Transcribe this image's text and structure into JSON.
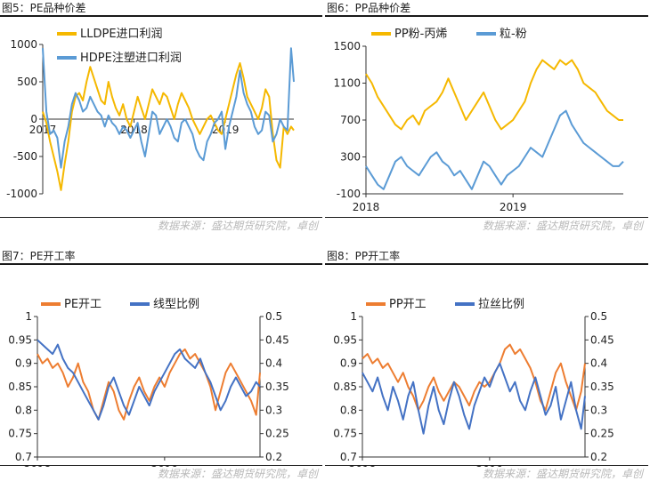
{
  "source_text": "数据来源：盛达期货研究院，卓创",
  "colors": {
    "orange": "#ed7d31",
    "gold": "#f5b800",
    "blue": "#5b9bd5",
    "navy": "#4472c4"
  },
  "chart_data": [
    {
      "id": "fig5",
      "type": "line",
      "title": "图5：PE品种价差",
      "ylim": [
        -1000,
        1000
      ],
      "yticks": [
        "1000",
        "500",
        "0",
        "-500",
        "-1000"
      ],
      "xlabels": [
        "2017",
        "2018",
        "2019"
      ],
      "xlabel_pos": [
        2017,
        2018,
        2019
      ],
      "xlim": [
        2017.0,
        2019.75
      ],
      "legend": "top-left",
      "series": [
        {
          "name": "LLDPE进口利润",
          "color": "#f5b800",
          "x": [
            2017.0,
            2017.04,
            2017.08,
            2017.12,
            2017.16,
            2017.2,
            2017.24,
            2017.28,
            2017.32,
            2017.36,
            2017.4,
            2017.44,
            2017.48,
            2017.52,
            2017.56,
            2017.6,
            2017.64,
            2017.68,
            2017.72,
            2017.76,
            2017.8,
            2017.84,
            2017.88,
            2017.92,
            2017.96,
            2018.0,
            2018.04,
            2018.08,
            2018.12,
            2018.16,
            2018.2,
            2018.24,
            2018.28,
            2018.32,
            2018.36,
            2018.4,
            2018.44,
            2018.48,
            2018.52,
            2018.56,
            2018.6,
            2018.64,
            2018.68,
            2018.72,
            2018.76,
            2018.8,
            2018.84,
            2018.88,
            2018.92,
            2018.96,
            2019.0,
            2019.04,
            2019.08,
            2019.12,
            2019.16,
            2019.2,
            2019.24,
            2019.28,
            2019.32,
            2019.36,
            2019.4,
            2019.44,
            2019.48,
            2019.52,
            2019.56,
            2019.6,
            2019.64,
            2019.68,
            2019.72,
            2019.75
          ],
          "y": [
            100,
            -50,
            -300,
            -500,
            -700,
            -950,
            -600,
            -300,
            100,
            300,
            350,
            250,
            500,
            700,
            550,
            400,
            250,
            200,
            500,
            300,
            150,
            50,
            200,
            0,
            -100,
            100,
            300,
            150,
            0,
            200,
            400,
            300,
            200,
            350,
            300,
            150,
            0,
            200,
            350,
            250,
            150,
            0,
            -100,
            -200,
            -100,
            0,
            50,
            -50,
            -150,
            -200,
            0,
            200,
            400,
            600,
            750,
            550,
            300,
            200,
            100,
            0,
            150,
            400,
            300,
            -200,
            -550,
            -650,
            -100,
            -200,
            -100,
            -150
          ]
        },
        {
          "name": "HDPE注塑进口利润",
          "color": "#5b9bd5",
          "x": [
            2017.0,
            2017.04,
            2017.08,
            2017.12,
            2017.16,
            2017.2,
            2017.24,
            2017.28,
            2017.32,
            2017.36,
            2017.4,
            2017.44,
            2017.48,
            2017.52,
            2017.56,
            2017.6,
            2017.64,
            2017.68,
            2017.72,
            2017.76,
            2017.8,
            2017.84,
            2017.88,
            2017.92,
            2017.96,
            2018.0,
            2018.04,
            2018.08,
            2018.12,
            2018.16,
            2018.2,
            2018.24,
            2018.28,
            2018.32,
            2018.36,
            2018.4,
            2018.44,
            2018.48,
            2018.52,
            2018.56,
            2018.6,
            2018.64,
            2018.68,
            2018.72,
            2018.76,
            2018.8,
            2018.84,
            2018.88,
            2018.92,
            2018.96,
            2019.0,
            2019.04,
            2019.08,
            2019.12,
            2019.16,
            2019.2,
            2019.24,
            2019.28,
            2019.32,
            2019.36,
            2019.4,
            2019.44,
            2019.48,
            2019.52,
            2019.56,
            2019.6,
            2019.64,
            2019.68,
            2019.72,
            2019.75
          ],
          "y": [
            950,
            100,
            -200,
            -150,
            -250,
            -650,
            -300,
            -100,
            200,
            350,
            250,
            100,
            150,
            300,
            200,
            100,
            50,
            -100,
            50,
            -50,
            -100,
            -200,
            -100,
            -150,
            -250,
            -150,
            -50,
            -300,
            -500,
            -200,
            100,
            50,
            -200,
            -100,
            0,
            -100,
            -250,
            -300,
            -50,
            0,
            -100,
            -200,
            -400,
            -500,
            -550,
            -300,
            -200,
            -50,
            0,
            100,
            -400,
            -100,
            100,
            300,
            650,
            350,
            200,
            100,
            -100,
            -200,
            -150,
            100,
            50,
            -300,
            -200,
            0,
            -100,
            -150,
            950,
            500
          ]
        }
      ]
    },
    {
      "id": "fig6",
      "type": "line",
      "title": "图6：PP品种价差",
      "ylim": [
        -100,
        1500
      ],
      "yticks": [
        "1500",
        "1100",
        "700",
        "300",
        "-100"
      ],
      "xlabels": [
        "2018",
        "2019"
      ],
      "xlabel_pos": [
        2018,
        2019
      ],
      "xlim": [
        2018.0,
        2019.75
      ],
      "legend": "top",
      "series": [
        {
          "name": "PP粉-丙烯",
          "color": "#f5b800",
          "x": [
            2018.0,
            2018.04,
            2018.08,
            2018.12,
            2018.16,
            2018.2,
            2018.24,
            2018.28,
            2018.32,
            2018.36,
            2018.4,
            2018.44,
            2018.48,
            2018.52,
            2018.56,
            2018.6,
            2018.64,
            2018.68,
            2018.72,
            2018.76,
            2018.8,
            2018.84,
            2018.88,
            2018.92,
            2018.96,
            2019.0,
            2019.04,
            2019.08,
            2019.12,
            2019.16,
            2019.2,
            2019.24,
            2019.28,
            2019.32,
            2019.36,
            2019.4,
            2019.44,
            2019.48,
            2019.52,
            2019.56,
            2019.6,
            2019.64,
            2019.68,
            2019.72,
            2019.75
          ],
          "y": [
            1200,
            1100,
            950,
            850,
            750,
            650,
            600,
            700,
            750,
            650,
            800,
            850,
            900,
            1000,
            1150,
            1000,
            850,
            700,
            800,
            900,
            1000,
            850,
            700,
            600,
            650,
            700,
            800,
            900,
            1100,
            1250,
            1350,
            1300,
            1250,
            1350,
            1300,
            1350,
            1250,
            1100,
            1050,
            1000,
            900,
            800,
            750,
            700,
            700
          ]
        },
        {
          "name": "粒-粉",
          "color": "#5b9bd5",
          "x": [
            2018.0,
            2018.04,
            2018.08,
            2018.12,
            2018.16,
            2018.2,
            2018.24,
            2018.28,
            2018.32,
            2018.36,
            2018.4,
            2018.44,
            2018.48,
            2018.52,
            2018.56,
            2018.6,
            2018.64,
            2018.68,
            2018.72,
            2018.76,
            2018.8,
            2018.84,
            2018.88,
            2018.92,
            2018.96,
            2019.0,
            2019.04,
            2019.08,
            2019.12,
            2019.16,
            2019.2,
            2019.24,
            2019.28,
            2019.32,
            2019.36,
            2019.4,
            2019.44,
            2019.48,
            2019.52,
            2019.56,
            2019.6,
            2019.64,
            2019.68,
            2019.72,
            2019.75
          ],
          "y": [
            200,
            100,
            0,
            -50,
            100,
            250,
            300,
            200,
            150,
            100,
            200,
            300,
            350,
            250,
            200,
            100,
            150,
            50,
            -50,
            100,
            250,
            200,
            100,
            0,
            100,
            150,
            200,
            300,
            400,
            350,
            300,
            450,
            600,
            750,
            800,
            650,
            550,
            450,
            400,
            350,
            300,
            250,
            200,
            200,
            250
          ]
        }
      ]
    },
    {
      "id": "fig7",
      "type": "line",
      "title": "图7：PE开工率",
      "ylim": [
        0.7,
        1.0
      ],
      "y2lim": [
        0.2,
        0.5
      ],
      "yticks": [
        "1",
        "0.95",
        "0.9",
        "0.85",
        "0.8",
        "0.75",
        "0.7"
      ],
      "y2ticks": [
        "0.5",
        "0.45",
        "0.4",
        "0.35",
        "0.3",
        "0.25",
        "0.2"
      ],
      "xlabels": [
        "2018",
        "2019"
      ],
      "xlabel_pos": [
        2018,
        2019
      ],
      "xlim": [
        2018.0,
        2019.75
      ],
      "legend": "top",
      "series": [
        {
          "name": "PE开工",
          "color": "#ed7d31",
          "axis": "left",
          "x": [
            2018.0,
            2018.04,
            2018.08,
            2018.12,
            2018.16,
            2018.2,
            2018.24,
            2018.28,
            2018.32,
            2018.36,
            2018.4,
            2018.44,
            2018.48,
            2018.52,
            2018.56,
            2018.6,
            2018.64,
            2018.68,
            2018.72,
            2018.76,
            2018.8,
            2018.84,
            2018.88,
            2018.92,
            2018.96,
            2019.0,
            2019.04,
            2019.08,
            2019.12,
            2019.16,
            2019.2,
            2019.24,
            2019.28,
            2019.32,
            2019.36,
            2019.4,
            2019.44,
            2019.48,
            2019.52,
            2019.56,
            2019.6,
            2019.64,
            2019.68,
            2019.72,
            2019.75
          ],
          "y": [
            0.92,
            0.9,
            0.91,
            0.89,
            0.9,
            0.88,
            0.85,
            0.87,
            0.9,
            0.86,
            0.84,
            0.8,
            0.78,
            0.82,
            0.86,
            0.84,
            0.8,
            0.78,
            0.82,
            0.85,
            0.87,
            0.84,
            0.82,
            0.85,
            0.87,
            0.85,
            0.88,
            0.9,
            0.92,
            0.93,
            0.91,
            0.92,
            0.9,
            0.88,
            0.85,
            0.8,
            0.84,
            0.88,
            0.9,
            0.88,
            0.86,
            0.84,
            0.82,
            0.79,
            0.88
          ]
        },
        {
          "name": "线型比例",
          "color": "#4472c4",
          "axis": "right",
          "x": [
            2018.0,
            2018.04,
            2018.08,
            2018.12,
            2018.16,
            2018.2,
            2018.24,
            2018.28,
            2018.32,
            2018.36,
            2018.4,
            2018.44,
            2018.48,
            2018.52,
            2018.56,
            2018.6,
            2018.64,
            2018.68,
            2018.72,
            2018.76,
            2018.8,
            2018.84,
            2018.88,
            2018.92,
            2018.96,
            2019.0,
            2019.04,
            2019.08,
            2019.12,
            2019.16,
            2019.2,
            2019.24,
            2019.28,
            2019.32,
            2019.36,
            2019.4,
            2019.44,
            2019.48,
            2019.52,
            2019.56,
            2019.6,
            2019.64,
            2019.68,
            2019.72,
            2019.75
          ],
          "y": [
            0.45,
            0.44,
            0.43,
            0.42,
            0.44,
            0.41,
            0.39,
            0.38,
            0.36,
            0.34,
            0.32,
            0.3,
            0.28,
            0.31,
            0.35,
            0.37,
            0.34,
            0.31,
            0.29,
            0.32,
            0.35,
            0.33,
            0.31,
            0.34,
            0.36,
            0.38,
            0.4,
            0.42,
            0.43,
            0.41,
            0.4,
            0.39,
            0.41,
            0.38,
            0.36,
            0.33,
            0.3,
            0.32,
            0.35,
            0.37,
            0.35,
            0.33,
            0.34,
            0.36,
            0.35
          ]
        }
      ]
    },
    {
      "id": "fig8",
      "type": "line",
      "title": "图8：PP开工率",
      "ylim": [
        0.7,
        1.0
      ],
      "y2lim": [
        0.2,
        0.5
      ],
      "yticks": [
        "1",
        "0.95",
        "0.9",
        "0.85",
        "0.8",
        "0.75",
        "0.7"
      ],
      "y2ticks": [
        "0.5",
        "0.45",
        "0.4",
        "0.35",
        "0.3",
        "0.25",
        "0.2"
      ],
      "xlabels": [
        "2018",
        "2019"
      ],
      "xlabel_pos": [
        2018,
        2019
      ],
      "xlim": [
        2018.0,
        2019.75
      ],
      "legend": "top",
      "series": [
        {
          "name": "PP开工",
          "color": "#ed7d31",
          "axis": "left",
          "x": [
            2018.0,
            2018.04,
            2018.08,
            2018.12,
            2018.16,
            2018.2,
            2018.24,
            2018.28,
            2018.32,
            2018.36,
            2018.4,
            2018.44,
            2018.48,
            2018.52,
            2018.56,
            2018.6,
            2018.64,
            2018.68,
            2018.72,
            2018.76,
            2018.8,
            2018.84,
            2018.88,
            2018.92,
            2018.96,
            2019.0,
            2019.04,
            2019.08,
            2019.12,
            2019.16,
            2019.2,
            2019.24,
            2019.28,
            2019.32,
            2019.36,
            2019.4,
            2019.44,
            2019.48,
            2019.52,
            2019.56,
            2019.6,
            2019.64,
            2019.68,
            2019.72,
            2019.75
          ],
          "y": [
            0.91,
            0.92,
            0.9,
            0.91,
            0.89,
            0.9,
            0.88,
            0.86,
            0.88,
            0.85,
            0.83,
            0.8,
            0.82,
            0.85,
            0.87,
            0.84,
            0.82,
            0.84,
            0.86,
            0.85,
            0.83,
            0.81,
            0.84,
            0.86,
            0.85,
            0.86,
            0.88,
            0.9,
            0.93,
            0.94,
            0.92,
            0.93,
            0.91,
            0.89,
            0.86,
            0.82,
            0.8,
            0.84,
            0.88,
            0.9,
            0.86,
            0.83,
            0.8,
            0.84,
            0.9
          ]
        },
        {
          "name": "拉丝比例",
          "color": "#4472c4",
          "axis": "right",
          "x": [
            2018.0,
            2018.04,
            2018.08,
            2018.12,
            2018.16,
            2018.2,
            2018.24,
            2018.28,
            2018.32,
            2018.36,
            2018.4,
            2018.44,
            2018.48,
            2018.52,
            2018.56,
            2018.6,
            2018.64,
            2018.68,
            2018.72,
            2018.76,
            2018.8,
            2018.84,
            2018.88,
            2018.92,
            2018.96,
            2019.0,
            2019.04,
            2019.08,
            2019.12,
            2019.16,
            2019.2,
            2019.24,
            2019.28,
            2019.32,
            2019.36,
            2019.4,
            2019.44,
            2019.48,
            2019.52,
            2019.56,
            2019.6,
            2019.64,
            2019.68,
            2019.72,
            2019.75
          ],
          "y": [
            0.38,
            0.36,
            0.34,
            0.37,
            0.33,
            0.3,
            0.35,
            0.32,
            0.28,
            0.33,
            0.36,
            0.3,
            0.25,
            0.31,
            0.35,
            0.3,
            0.27,
            0.32,
            0.36,
            0.33,
            0.29,
            0.26,
            0.31,
            0.34,
            0.37,
            0.35,
            0.38,
            0.4,
            0.37,
            0.34,
            0.36,
            0.32,
            0.3,
            0.34,
            0.37,
            0.33,
            0.29,
            0.31,
            0.35,
            0.28,
            0.32,
            0.36,
            0.3,
            0.26,
            0.33
          ]
        }
      ]
    }
  ]
}
